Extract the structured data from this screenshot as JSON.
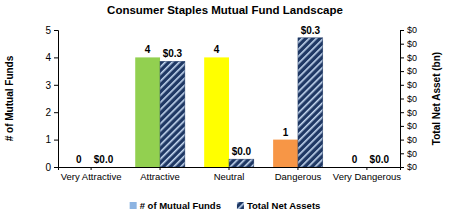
{
  "chart_data": {
    "type": "bar",
    "title": "Consumer Staples Mutual Fund Landscape",
    "categories": [
      "Very Attractive",
      "Attractive",
      "Neutral",
      "Dangerous",
      "Very Dangerous"
    ],
    "series": [
      {
        "name": "# of Mutual Funds",
        "color": "#8db4e2",
        "colors": [
          "#92d050",
          "#92d050",
          "#ffff00",
          "#f79646",
          "#c0504d"
        ],
        "values": [
          0,
          4,
          4,
          1,
          0
        ]
      },
      {
        "name": "Total Net Assets",
        "color": "#1f3864",
        "axis": "y2",
        "values": [
          0,
          0.27,
          0.02,
          0.33,
          0
        ],
        "value_labels": [
          "$0.0",
          "$0.3",
          "$0.0",
          "$0.3",
          "$0.0"
        ]
      }
    ],
    "ylabel": "# of Mutual Funds",
    "y2label": "Total Net Asset (bn)",
    "ylim": [
      0,
      5
    ],
    "yticks": [
      0,
      1,
      2,
      3,
      4,
      5
    ],
    "y2lim": [
      0,
      0.35
    ],
    "y2ticks": [
      {
        "value": 0,
        "label": "$0"
      },
      {
        "value": 0.035,
        "label": "$0"
      },
      {
        "value": 0.07,
        "label": "$0"
      },
      {
        "value": 0.105,
        "label": "$0"
      },
      {
        "value": 0.14,
        "label": "$0"
      },
      {
        "value": 0.175,
        "label": "$0"
      },
      {
        "value": 0.21,
        "label": "$0"
      },
      {
        "value": 0.245,
        "label": "$0"
      },
      {
        "value": 0.28,
        "label": "$0"
      },
      {
        "value": 0.315,
        "label": "$0"
      },
      {
        "value": 0.35,
        "label": "$0"
      }
    ],
    "data_labels": true,
    "legend": "bottom"
  }
}
